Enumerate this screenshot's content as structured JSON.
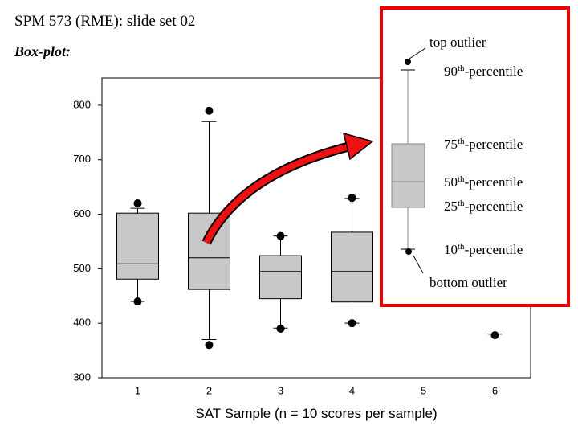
{
  "header": {
    "title": "SPM 573 (RME): slide set 02",
    "subtitle": "Box-plot:"
  },
  "chart_data": {
    "type": "box",
    "x_label": "SAT Sample (n = 10 scores per sample)",
    "categories": [
      "1",
      "2",
      "3",
      "4",
      "5",
      "6"
    ],
    "ylim": [
      300,
      850
    ],
    "yticks": [
      300,
      400,
      500,
      600,
      700,
      800
    ],
    "boxes": [
      {
        "whisker_low": 440,
        "q1": 481,
        "median": 509,
        "q3": 602,
        "whisker_high": 611,
        "outliers": [
          440,
          620
        ]
      },
      {
        "whisker_low": 370,
        "q1": 462,
        "median": 520,
        "q3": 602,
        "whisker_high": 770,
        "outliers": [
          360,
          790
        ]
      },
      {
        "whisker_low": 391,
        "q1": 445,
        "median": 495,
        "q3": 524,
        "whisker_high": 560,
        "outliers": [
          390,
          560
        ]
      },
      {
        "whisker_low": 400,
        "q1": 439,
        "median": 495,
        "q3": 567,
        "whisker_high": 629,
        "outliers": [
          400,
          630
        ]
      },
      {
        "whisker_low": null,
        "q1": null,
        "median": null,
        "q3": null,
        "whisker_high": null,
        "outliers": []
      },
      {
        "whisker_low": 380,
        "q1": null,
        "median": null,
        "q3": null,
        "whisker_high": null,
        "outliers": [
          378
        ]
      }
    ]
  },
  "inset": {
    "top_outlier": "top outlier",
    "bottom_outlier": "bottom outlier",
    "percentiles": [
      {
        "number": "90",
        "suffix": "th",
        "text": "-percentile"
      },
      {
        "number": "75",
        "suffix": "th",
        "text": "-percentile"
      },
      {
        "number": "50",
        "suffix": "th",
        "text": "-percentile"
      },
      {
        "number": "25",
        "suffix": "th",
        "text": "-percentile"
      },
      {
        "number": "10",
        "suffix": "th",
        "text": "-percentile"
      }
    ]
  }
}
